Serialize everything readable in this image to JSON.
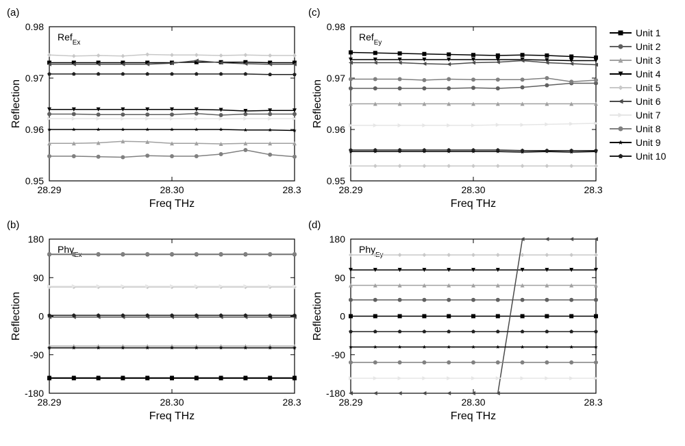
{
  "figure": {
    "background_color": "#ffffff",
    "text_color": "#000000",
    "tick_fontsize": 14,
    "label_fontsize": 16,
    "annotation_fontsize": 14,
    "panel_label_fontsize": 15,
    "xaxis_label": "Freq THz",
    "yaxis_label": "Reflection",
    "xlim": [
      28.29,
      28.31
    ],
    "xticks": [
      28.29,
      28.3,
      28.31
    ],
    "series": [
      {
        "name": "Unit 1",
        "color": "#000000",
        "marker": "square"
      },
      {
        "name": "Unit 2",
        "color": "#606060",
        "marker": "circle"
      },
      {
        "name": "Unit 3",
        "color": "#a0a0a0",
        "marker": "triangle-up"
      },
      {
        "name": "Unit 4",
        "color": "#000000",
        "marker": "triangle-down"
      },
      {
        "name": "Unit 5",
        "color": "#c8c8c8",
        "marker": "diamond"
      },
      {
        "name": "Unit 6",
        "color": "#4a4a4a",
        "marker": "triangle-left"
      },
      {
        "name": "Unit 7",
        "color": "#e6e6e6",
        "marker": "triangle-right"
      },
      {
        "name": "Unit 8",
        "color": "#808080",
        "marker": "circle"
      },
      {
        "name": "Unit 9",
        "color": "#000000",
        "marker": "star"
      },
      {
        "name": "Unit 10",
        "color": "#202020",
        "marker": "pentagon"
      }
    ],
    "marker_size": 6,
    "line_width": 1.5,
    "n_markers": 11,
    "panels": {
      "a": {
        "label": "(a)",
        "annotation": "Ref",
        "annotation_sub": "Ex",
        "ylim": [
          0.95,
          0.98
        ],
        "yticks": [
          0.95,
          0.96,
          0.97,
          0.98
        ],
        "data": {
          "Unit 1": [
            0.973,
            0.973,
            0.973,
            0.973,
            0.973,
            0.973,
            0.9731,
            0.9731,
            0.9731,
            0.973,
            0.973
          ],
          "Unit 2": [
            0.963,
            0.963,
            0.9629,
            0.9629,
            0.9629,
            0.9629,
            0.9631,
            0.9628,
            0.963,
            0.963,
            0.963
          ],
          "Unit 3": [
            0.9573,
            0.9573,
            0.9574,
            0.9577,
            0.9576,
            0.9573,
            0.9573,
            0.9572,
            0.9573,
            0.9573,
            0.9573
          ],
          "Unit 4": [
            0.9639,
            0.9639,
            0.9639,
            0.9639,
            0.9639,
            0.9639,
            0.9639,
            0.9638,
            0.9636,
            0.9637,
            0.9637
          ],
          "Unit 5": [
            0.9745,
            0.9743,
            0.9744,
            0.9743,
            0.9746,
            0.9745,
            0.9745,
            0.9744,
            0.9745,
            0.9744,
            0.9744
          ],
          "Unit 6": [
            0.9727,
            0.9727,
            0.9727,
            0.9727,
            0.9727,
            0.9729,
            0.9734,
            0.973,
            0.9728,
            0.9727,
            0.9727
          ],
          "Unit 7": [
            0.9621,
            0.9621,
            0.9621,
            0.9621,
            0.9621,
            0.9621,
            0.9621,
            0.9621,
            0.9621,
            0.9621,
            0.9621
          ],
          "Unit 8": [
            0.9548,
            0.9548,
            0.9547,
            0.9546,
            0.9549,
            0.9548,
            0.9548,
            0.9552,
            0.956,
            0.9551,
            0.9547
          ],
          "Unit 9": [
            0.96,
            0.96,
            0.96,
            0.96,
            0.96,
            0.96,
            0.96,
            0.96,
            0.9599,
            0.9599,
            0.9598
          ],
          "Unit 10": [
            0.9708,
            0.9708,
            0.9708,
            0.9708,
            0.9708,
            0.9708,
            0.9708,
            0.9708,
            0.9708,
            0.9707,
            0.9707
          ]
        }
      },
      "b": {
        "label": "(b)",
        "annotation": "Phy",
        "annotation_sub": "Ex",
        "ylim": [
          -180,
          180
        ],
        "yticks": [
          -180,
          -90,
          0,
          90,
          180
        ],
        "data": {
          "Unit 1": [
            -145,
            -145,
            -145,
            -145,
            -145,
            -145,
            -145,
            -145,
            -145,
            -145,
            -145
          ],
          "Unit 2": [
            144,
            144,
            144,
            144,
            144,
            144,
            144,
            144,
            144,
            144,
            144
          ],
          "Unit 3": [
            -70,
            -70,
            -70,
            -70,
            -70,
            -70,
            -70,
            -70,
            -70,
            -70,
            -70
          ],
          "Unit 4": [
            -144,
            -144,
            -144,
            -144,
            -144,
            -144,
            -144,
            -144,
            -144,
            -144,
            -144
          ],
          "Unit 5": [
            68,
            68,
            68,
            68,
            68,
            68,
            68,
            68,
            68,
            68,
            68
          ],
          "Unit 6": [
            -2,
            -2,
            -2,
            -2,
            -2,
            -2,
            -2,
            -2,
            -2,
            -2,
            -2
          ],
          "Unit 7": [
            70,
            70,
            70,
            70,
            70,
            70,
            70,
            70,
            70,
            70,
            70
          ],
          "Unit 8": [
            145,
            145,
            145,
            145,
            145,
            145,
            145,
            145,
            145,
            145,
            145
          ],
          "Unit 9": [
            -74,
            -74,
            -74,
            -74,
            -74,
            -74,
            -74,
            -74,
            -74,
            -74,
            -74
          ],
          "Unit 10": [
            2,
            2,
            2,
            2,
            2,
            2,
            2,
            2,
            2,
            2,
            2
          ]
        }
      },
      "c": {
        "label": "(c)",
        "annotation": "Ref",
        "annotation_sub": "Ey",
        "ylim": [
          0.95,
          0.98
        ],
        "yticks": [
          0.95,
          0.96,
          0.97,
          0.98
        ],
        "data": {
          "Unit 1": [
            0.975,
            0.9749,
            0.9748,
            0.9747,
            0.9746,
            0.9745,
            0.9744,
            0.9745,
            0.9744,
            0.9742,
            0.974
          ],
          "Unit 2": [
            0.968,
            0.968,
            0.968,
            0.968,
            0.968,
            0.9681,
            0.968,
            0.9682,
            0.9686,
            0.969,
            0.969
          ],
          "Unit 3": [
            0.965,
            0.965,
            0.965,
            0.965,
            0.965,
            0.965,
            0.965,
            0.965,
            0.965,
            0.965,
            0.965
          ],
          "Unit 4": [
            0.9736,
            0.9736,
            0.9736,
            0.9736,
            0.9736,
            0.9736,
            0.9736,
            0.9736,
            0.9735,
            0.9734,
            0.9734
          ],
          "Unit 5": [
            0.9529,
            0.9529,
            0.9529,
            0.9529,
            0.9529,
            0.9529,
            0.9529,
            0.9529,
            0.9529,
            0.9529,
            0.9529
          ],
          "Unit 6": [
            0.973,
            0.973,
            0.973,
            0.9728,
            0.9727,
            0.973,
            0.9731,
            0.9734,
            0.973,
            0.9728,
            0.9726
          ],
          "Unit 7": [
            0.9608,
            0.9608,
            0.9608,
            0.9608,
            0.9608,
            0.9608,
            0.9609,
            0.9609,
            0.961,
            0.9611,
            0.9612
          ],
          "Unit 8": [
            0.9698,
            0.9698,
            0.9698,
            0.9696,
            0.9698,
            0.9697,
            0.9697,
            0.9697,
            0.97,
            0.9693,
            0.9696
          ],
          "Unit 9": [
            0.9557,
            0.9557,
            0.9557,
            0.9557,
            0.9557,
            0.9557,
            0.9557,
            0.9556,
            0.9557,
            0.9556,
            0.9557
          ],
          "Unit 10": [
            0.956,
            0.956,
            0.956,
            0.956,
            0.956,
            0.956,
            0.956,
            0.9559,
            0.9559,
            0.9559,
            0.9559
          ]
        }
      },
      "d": {
        "label": "(d)",
        "annotation": "Phy",
        "annotation_sub": "Ey",
        "ylim": [
          -180,
          180
        ],
        "yticks": [
          -180,
          -90,
          0,
          90,
          180
        ],
        "data": {
          "Unit 1": [
            0,
            0,
            0,
            0,
            0,
            0,
            0,
            0,
            0,
            0,
            0
          ],
          "Unit 2": [
            38,
            38,
            38,
            38,
            38,
            38,
            38,
            38,
            38,
            38,
            38
          ],
          "Unit 3": [
            72,
            72,
            72,
            72,
            72,
            72,
            72,
            72,
            72,
            72,
            72
          ],
          "Unit 4": [
            108,
            108,
            108,
            108,
            108,
            108,
            108,
            108,
            108,
            108,
            108
          ],
          "Unit 5": [
            143,
            143,
            143,
            143,
            143,
            143,
            143,
            143,
            143,
            143,
            143
          ],
          "Unit 6": [
            -180,
            -180,
            -180,
            -180,
            -180,
            -180,
            -180,
            180,
            180,
            180,
            180
          ],
          "Unit 7": [
            -145,
            -145,
            -145,
            -145,
            -145,
            -145,
            -145,
            -145,
            -145,
            -145,
            -145
          ],
          "Unit 8": [
            -108,
            -108,
            -108,
            -108,
            -108,
            -108,
            -108,
            -108,
            -108,
            -108,
            -108
          ],
          "Unit 9": [
            -72,
            -72,
            -72,
            -72,
            -72,
            -72,
            -72,
            -72,
            -72,
            -72,
            -72
          ],
          "Unit 10": [
            -36,
            -36,
            -36,
            -36,
            -36,
            -36,
            -36,
            -36,
            -36,
            -36,
            -36
          ]
        }
      }
    }
  }
}
